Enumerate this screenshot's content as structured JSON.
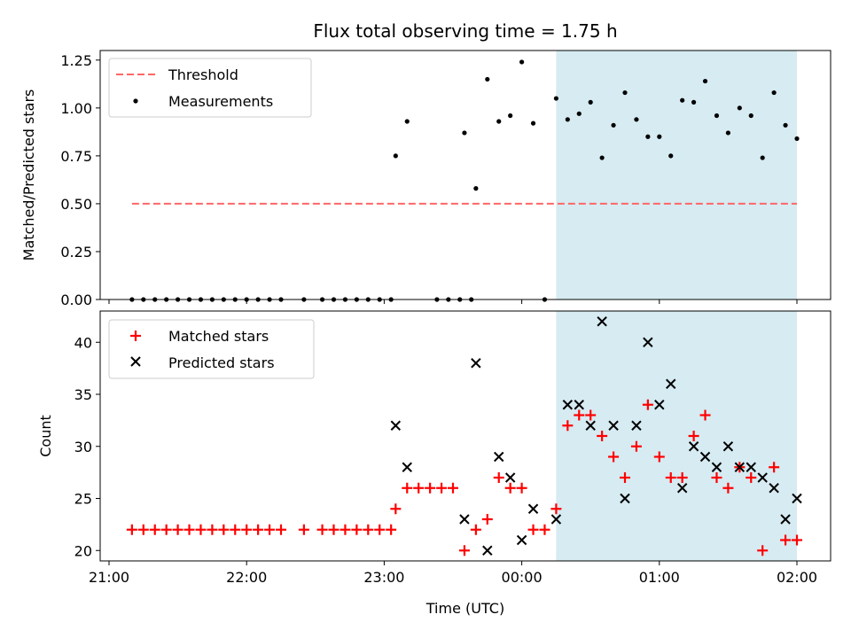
{
  "chart_data": [
    {
      "type": "scatter",
      "title": "Flux total observing time = 1.75 h",
      "ylabel": "Matched/Predicted stars",
      "xlabel": "",
      "ylim": [
        0,
        1.3
      ],
      "yticks": [
        "0.00",
        "0.25",
        "0.50",
        "0.75",
        "1.00",
        "1.25"
      ],
      "ytick_values": [
        0,
        0.25,
        0.5,
        0.75,
        1.0,
        1.25
      ],
      "legend_position": "upper-left",
      "shaded_span": {
        "start": "00:15",
        "end": "02:00",
        "color": "#add8e6"
      },
      "threshold": {
        "name": "Threshold",
        "y": 0.5,
        "x_start": "21:10",
        "x_end": "02:00",
        "color": "#ff6666"
      },
      "series": [
        {
          "name": "Measurements",
          "color": "#000000",
          "points": [
            [
              "21:10",
              0
            ],
            [
              "21:15",
              0
            ],
            [
              "21:20",
              0
            ],
            [
              "21:25",
              0
            ],
            [
              "21:30",
              0
            ],
            [
              "21:35",
              0
            ],
            [
              "21:40",
              0
            ],
            [
              "21:45",
              0
            ],
            [
              "21:50",
              0
            ],
            [
              "21:55",
              0
            ],
            [
              "22:00",
              0
            ],
            [
              "22:05",
              0
            ],
            [
              "22:10",
              0
            ],
            [
              "22:15",
              0
            ],
            [
              "22:25",
              0
            ],
            [
              "22:33",
              0
            ],
            [
              "22:38",
              0
            ],
            [
              "22:43",
              0
            ],
            [
              "22:48",
              0
            ],
            [
              "22:53",
              0
            ],
            [
              "22:58",
              0
            ],
            [
              "23:03",
              0
            ],
            [
              "23:23",
              0
            ],
            [
              "23:28",
              0
            ],
            [
              "23:33",
              0
            ],
            [
              "23:38",
              0
            ],
            [
              "00:10",
              0
            ],
            [
              "23:05",
              0.75
            ],
            [
              "23:10",
              0.93
            ],
            [
              "23:35",
              0.87
            ],
            [
              "23:40",
              0.58
            ],
            [
              "23:45",
              1.15
            ],
            [
              "23:50",
              0.93
            ],
            [
              "23:55",
              0.96
            ],
            [
              "00:00",
              1.24
            ],
            [
              "00:05",
              0.92
            ],
            [
              "00:15",
              1.05
            ],
            [
              "00:20",
              0.94
            ],
            [
              "00:25",
              0.97
            ],
            [
              "00:30",
              1.03
            ],
            [
              "00:35",
              0.74
            ],
            [
              "00:40",
              0.91
            ],
            [
              "00:45",
              1.08
            ],
            [
              "00:50",
              0.94
            ],
            [
              "00:55",
              0.85
            ],
            [
              "01:00",
              0.85
            ],
            [
              "01:05",
              0.75
            ],
            [
              "01:10",
              1.04
            ],
            [
              "01:15",
              1.03
            ],
            [
              "01:20",
              1.14
            ],
            [
              "01:25",
              0.96
            ],
            [
              "01:30",
              0.87
            ],
            [
              "01:35",
              1.0
            ],
            [
              "01:40",
              0.96
            ],
            [
              "01:45",
              0.74
            ],
            [
              "01:50",
              1.08
            ],
            [
              "01:55",
              0.91
            ],
            [
              "02:00",
              0.84
            ]
          ]
        }
      ]
    },
    {
      "type": "scatter",
      "title": "",
      "ylabel": "Count",
      "xlabel": "Time (UTC)",
      "ylim": [
        19,
        43
      ],
      "yticks": [
        "20",
        "25",
        "30",
        "35",
        "40"
      ],
      "ytick_values": [
        20,
        25,
        30,
        35,
        40
      ],
      "xticks": [
        "21:00",
        "22:00",
        "23:00",
        "00:00",
        "01:00",
        "02:00"
      ],
      "legend_position": "upper-left",
      "shaded_span": {
        "start": "00:15",
        "end": "02:00",
        "color": "#add8e6"
      },
      "series": [
        {
          "name": "Matched stars",
          "marker": "plus",
          "color": "#ff0000",
          "points": [
            [
              "21:10",
              22
            ],
            [
              "21:15",
              22
            ],
            [
              "21:20",
              22
            ],
            [
              "21:25",
              22
            ],
            [
              "21:30",
              22
            ],
            [
              "21:35",
              22
            ],
            [
              "21:40",
              22
            ],
            [
              "21:45",
              22
            ],
            [
              "21:50",
              22
            ],
            [
              "21:55",
              22
            ],
            [
              "22:00",
              22
            ],
            [
              "22:05",
              22
            ],
            [
              "22:10",
              22
            ],
            [
              "22:15",
              22
            ],
            [
              "22:25",
              22
            ],
            [
              "22:33",
              22
            ],
            [
              "22:38",
              22
            ],
            [
              "22:43",
              22
            ],
            [
              "22:48",
              22
            ],
            [
              "22:53",
              22
            ],
            [
              "22:58",
              22
            ],
            [
              "23:03",
              22
            ],
            [
              "23:05",
              24
            ],
            [
              "23:10",
              26
            ],
            [
              "23:15",
              26
            ],
            [
              "23:20",
              26
            ],
            [
              "23:25",
              26
            ],
            [
              "23:30",
              26
            ],
            [
              "23:35",
              20
            ],
            [
              "23:40",
              22
            ],
            [
              "23:45",
              23
            ],
            [
              "23:50",
              27
            ],
            [
              "23:55",
              26
            ],
            [
              "00:00",
              26
            ],
            [
              "00:05",
              22
            ],
            [
              "00:10",
              22
            ],
            [
              "00:15",
              24
            ],
            [
              "00:20",
              32
            ],
            [
              "00:25",
              33
            ],
            [
              "00:30",
              33
            ],
            [
              "00:35",
              31
            ],
            [
              "00:40",
              29
            ],
            [
              "00:45",
              27
            ],
            [
              "00:50",
              30
            ],
            [
              "00:55",
              34
            ],
            [
              "01:00",
              29
            ],
            [
              "01:05",
              27
            ],
            [
              "01:10",
              27
            ],
            [
              "01:15",
              31
            ],
            [
              "01:20",
              33
            ],
            [
              "01:25",
              27
            ],
            [
              "01:30",
              26
            ],
            [
              "01:35",
              28
            ],
            [
              "01:40",
              27
            ],
            [
              "01:45",
              20
            ],
            [
              "01:50",
              28
            ],
            [
              "01:55",
              21
            ],
            [
              "02:00",
              21
            ]
          ]
        },
        {
          "name": "Predicted stars",
          "marker": "x",
          "color": "#000000",
          "points": [
            [
              "23:05",
              32
            ],
            [
              "23:10",
              28
            ],
            [
              "23:35",
              23
            ],
            [
              "23:40",
              38
            ],
            [
              "23:45",
              20
            ],
            [
              "23:50",
              29
            ],
            [
              "23:55",
              27
            ],
            [
              "00:00",
              21
            ],
            [
              "00:05",
              24
            ],
            [
              "00:15",
              23
            ],
            [
              "00:20",
              34
            ],
            [
              "00:25",
              34
            ],
            [
              "00:30",
              32
            ],
            [
              "00:35",
              42
            ],
            [
              "00:40",
              32
            ],
            [
              "00:45",
              25
            ],
            [
              "00:50",
              32
            ],
            [
              "00:55",
              40
            ],
            [
              "01:00",
              34
            ],
            [
              "01:05",
              36
            ],
            [
              "01:10",
              26
            ],
            [
              "01:15",
              30
            ],
            [
              "01:20",
              29
            ],
            [
              "01:25",
              28
            ],
            [
              "01:30",
              30
            ],
            [
              "01:35",
              28
            ],
            [
              "01:40",
              28
            ],
            [
              "01:45",
              27
            ],
            [
              "01:50",
              26
            ],
            [
              "01:55",
              23
            ],
            [
              "02:00",
              25
            ]
          ]
        }
      ]
    }
  ]
}
